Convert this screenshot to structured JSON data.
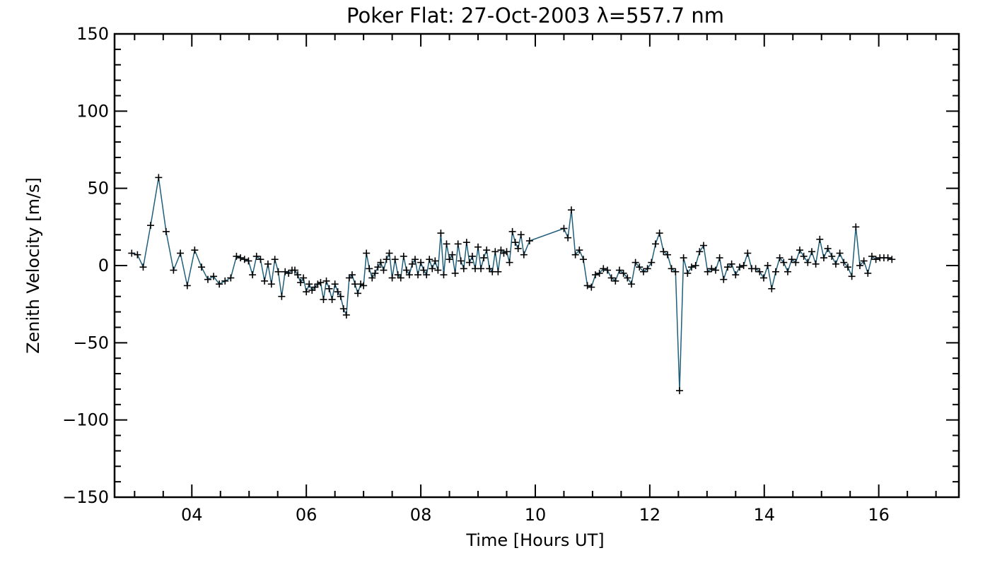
{
  "chart_data": {
    "type": "line",
    "title": "Poker Flat: 27-Oct-2003 λ=557.7 nm",
    "xlabel": "Time [Hours UT]",
    "ylabel": "Zenith Velocity [m/s]",
    "xlim": [
      2.65,
      17.4
    ],
    "ylim": [
      -150,
      150
    ],
    "xticks": [
      4,
      6,
      8,
      10,
      12,
      14,
      16
    ],
    "xtick_labels": [
      "04",
      "06",
      "08",
      "10",
      "12",
      "14",
      "16"
    ],
    "yticks": [
      -150,
      -100,
      -50,
      0,
      50,
      100,
      150
    ],
    "ytick_labels": [
      "−150",
      "−100",
      "−50",
      "0",
      "50",
      "100",
      "150"
    ],
    "line_color": "#1f5f7a",
    "marker_color": "#000000",
    "marker": "+",
    "series": [
      {
        "name": "Zenith Velocity",
        "x": [
          2.95,
          3.05,
          3.15,
          3.28,
          3.42,
          3.55,
          3.68,
          3.8,
          3.92,
          4.05,
          4.17,
          4.28,
          4.38,
          4.48,
          4.58,
          4.68,
          4.78,
          4.85,
          4.92,
          4.99,
          5.06,
          5.13,
          5.2,
          5.27,
          5.33,
          5.39,
          5.45,
          5.51,
          5.57,
          5.63,
          5.69,
          5.75,
          5.8,
          5.85,
          5.9,
          5.95,
          6.0,
          6.05,
          6.1,
          6.15,
          6.2,
          6.25,
          6.3,
          6.35,
          6.4,
          6.45,
          6.5,
          6.55,
          6.6,
          6.65,
          6.7,
          6.75,
          6.8,
          6.85,
          6.9,
          6.95,
          7.0,
          7.05,
          7.1,
          7.15,
          7.2,
          7.25,
          7.3,
          7.35,
          7.4,
          7.45,
          7.5,
          7.55,
          7.6,
          7.65,
          7.7,
          7.75,
          7.8,
          7.85,
          7.9,
          7.95,
          8.0,
          8.05,
          8.1,
          8.15,
          8.2,
          8.25,
          8.3,
          8.35,
          8.4,
          8.45,
          8.5,
          8.55,
          8.6,
          8.65,
          8.7,
          8.75,
          8.8,
          8.85,
          8.9,
          8.95,
          9.0,
          9.05,
          9.1,
          9.15,
          9.2,
          9.25,
          9.3,
          9.35,
          9.4,
          9.45,
          9.5,
          9.55,
          9.6,
          9.65,
          9.7,
          9.75,
          9.8,
          9.9,
          10.5,
          10.57,
          10.63,
          10.7,
          10.77,
          10.84,
          10.91,
          10.98,
          11.05,
          11.12,
          11.19,
          11.26,
          11.33,
          11.4,
          11.47,
          11.54,
          11.61,
          11.68,
          11.75,
          11.82,
          11.89,
          11.96,
          12.03,
          12.1,
          12.17,
          12.24,
          12.31,
          12.38,
          12.45,
          12.52,
          12.59,
          12.66,
          12.73,
          12.8,
          12.87,
          12.94,
          13.01,
          13.08,
          13.15,
          13.22,
          13.29,
          13.36,
          13.43,
          13.5,
          13.57,
          13.64,
          13.71,
          13.78,
          13.85,
          13.92,
          13.99,
          14.06,
          14.13,
          14.2,
          14.27,
          14.34,
          14.41,
          14.48,
          14.55,
          14.62,
          14.69,
          14.76,
          14.83,
          14.9,
          14.97,
          15.04,
          15.11,
          15.18,
          15.25,
          15.32,
          15.39,
          15.46,
          15.53,
          15.6,
          15.67,
          15.74,
          15.81,
          15.88,
          15.95,
          16.02,
          16.09,
          16.16,
          16.23
        ],
        "y": [
          8,
          7,
          -1,
          26,
          57,
          22,
          -3,
          8,
          -13,
          10,
          -1,
          -9,
          -7,
          -12,
          -10,
          -8,
          6,
          5,
          4,
          3,
          -6,
          6,
          4,
          -10,
          1,
          -12,
          4,
          -4,
          -20,
          -4,
          -5,
          -3,
          -3,
          -6,
          -11,
          -8,
          -17,
          -12,
          -16,
          -14,
          -12,
          -11,
          -22,
          -10,
          -15,
          -22,
          -12,
          -17,
          -20,
          -28,
          -32,
          -8,
          -6,
          -12,
          -18,
          -12,
          -13,
          8,
          -2,
          -8,
          -5,
          -1,
          2,
          -3,
          4,
          8,
          -8,
          4,
          -6,
          -8,
          6,
          -3,
          -6,
          1,
          4,
          -6,
          2,
          -3,
          -6,
          4,
          -2,
          3,
          -3,
          21,
          -6,
          14,
          4,
          7,
          -5,
          14,
          3,
          -2,
          15,
          2,
          6,
          -2,
          12,
          -2,
          5,
          10,
          -2,
          -4,
          9,
          -4,
          10,
          8,
          9,
          2,
          22,
          15,
          11,
          20,
          7,
          16,
          24,
          18,
          36,
          7,
          10,
          4,
          -13,
          -14,
          -6,
          -5,
          -2,
          -3,
          -8,
          -10,
          -3,
          -5,
          -8,
          -12,
          2,
          -1,
          -4,
          -2,
          2,
          14,
          21,
          9,
          7,
          -2,
          -4,
          -81,
          5,
          -5,
          -1,
          0,
          9,
          13,
          -4,
          -2,
          -3,
          5,
          -9,
          -1,
          1,
          -6,
          -1,
          0,
          8,
          -2,
          -2,
          -4,
          -8,
          0,
          -15,
          -4,
          5,
          2,
          -4,
          4,
          2,
          10,
          6,
          2,
          9,
          1,
          17,
          5,
          11,
          6,
          1,
          8,
          2,
          -1,
          -7,
          25,
          0,
          3,
          -5,
          6,
          4,
          5,
          5,
          5,
          4
        ]
      }
    ]
  }
}
